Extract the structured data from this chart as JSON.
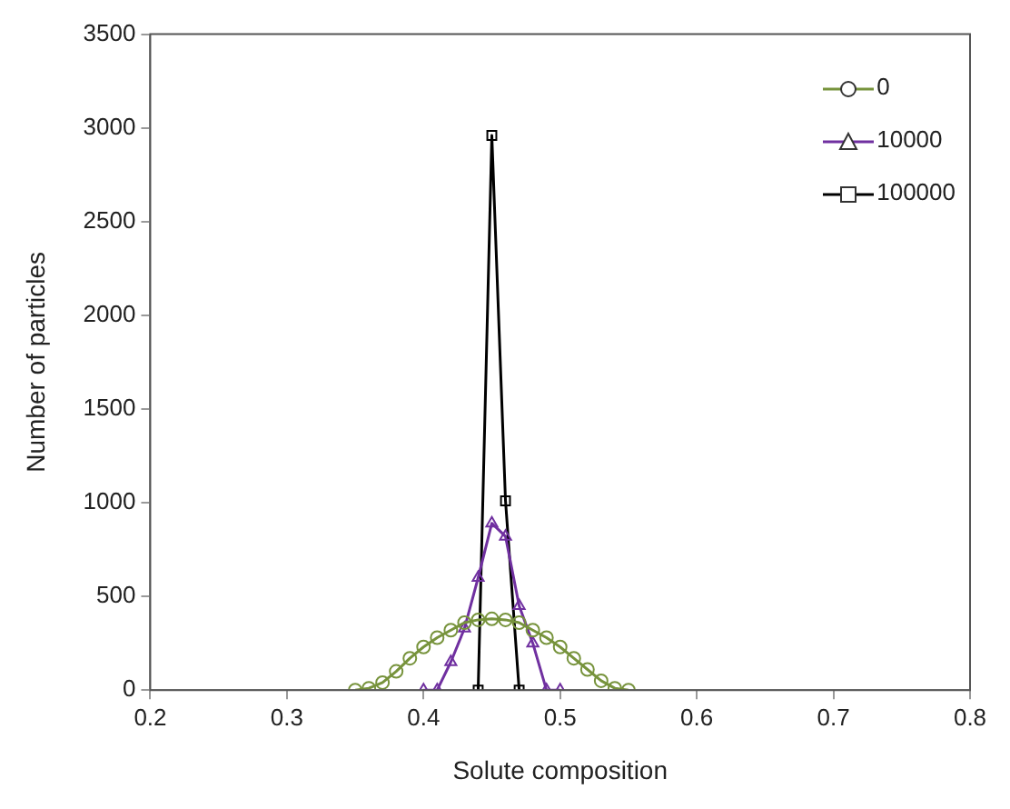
{
  "chart_data": {
    "type": "line",
    "xlabel": "Solute composition",
    "ylabel": "Number of particles",
    "xlim": [
      0.2,
      0.8
    ],
    "xticks": [
      0.2,
      0.3,
      0.4,
      0.5,
      0.6,
      0.7,
      0.8
    ],
    "ylim": [
      0,
      3500
    ],
    "yticks": [
      0,
      500,
      1000,
      1500,
      2000,
      2500,
      3000,
      3500
    ],
    "grid": false,
    "legend": "top right",
    "series": [
      {
        "name": "0",
        "color": "#77933c",
        "marker": "circle",
        "x": [
          0.35,
          0.36,
          0.37,
          0.38,
          0.39,
          0.4,
          0.41,
          0.42,
          0.43,
          0.44,
          0.45,
          0.46,
          0.47,
          0.48,
          0.49,
          0.5,
          0.51,
          0.52,
          0.53,
          0.54,
          0.55
        ],
        "values": [
          0,
          10,
          40,
          100,
          170,
          230,
          280,
          320,
          360,
          375,
          380,
          375,
          360,
          320,
          280,
          230,
          170,
          110,
          50,
          10,
          0
        ]
      },
      {
        "name": "10000",
        "color": "#7030a0",
        "marker": "triangle",
        "x": [
          0.4,
          0.41,
          0.42,
          0.43,
          0.44,
          0.45,
          0.46,
          0.47,
          0.48,
          0.49,
          0.5
        ],
        "values": [
          0,
          0,
          150,
          330,
          600,
          890,
          820,
          450,
          250,
          0,
          0
        ]
      },
      {
        "name": "100000",
        "color": "#000000",
        "marker": "square",
        "x": [
          0.44,
          0.45,
          0.46,
          0.47
        ],
        "values": [
          0,
          2960,
          1010,
          0
        ]
      }
    ]
  }
}
